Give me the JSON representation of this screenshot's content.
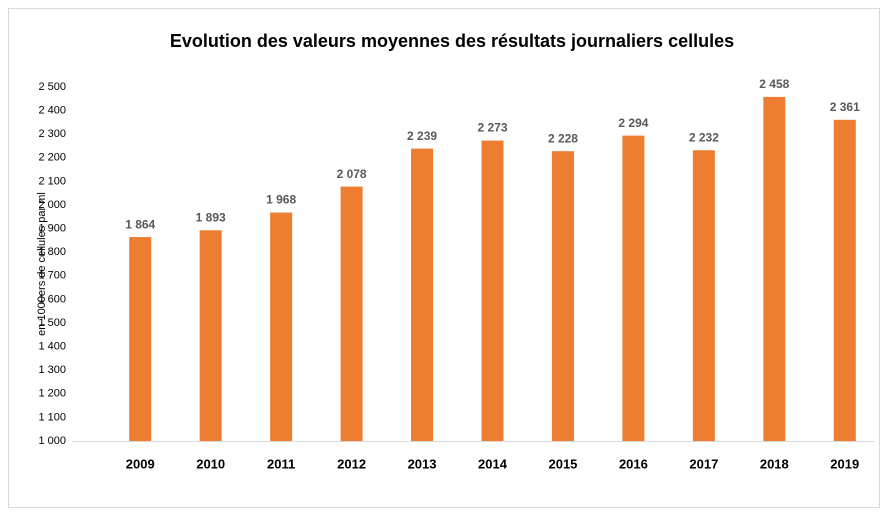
{
  "chart_data": {
    "type": "bar",
    "title": "Evolution des valeurs moyennes des résultats journaliers cellules",
    "y_label": "en 1000ers de cellules par ml",
    "categories": [
      "2009",
      "2010",
      "2011",
      "2012",
      "2013",
      "2014",
      "2015",
      "2016",
      "2017",
      "2018",
      "2019"
    ],
    "values": [
      1864,
      1893,
      1968,
      2078,
      2239,
      2273,
      2228,
      2294,
      2232,
      2458,
      2361
    ],
    "value_labels": [
      "1 864",
      "1 893",
      "1 968",
      "2 078",
      "2 239",
      "2 273",
      "2 228",
      "2 294",
      "2 232",
      "2 458",
      "2 361"
    ],
    "color": "#ed7d31",
    "ylim": [
      1000,
      2500
    ],
    "yticks": [
      {
        "value": 1000,
        "label": "1 000"
      },
      {
        "value": 1100,
        "label": "1 100"
      },
      {
        "value": 1200,
        "label": "1 200"
      },
      {
        "value": 1300,
        "label": "1 300"
      },
      {
        "value": 1400,
        "label": "1 400"
      },
      {
        "value": 1500,
        "label": "1 500"
      },
      {
        "value": 1600,
        "label": "1 600"
      },
      {
        "value": 1700,
        "label": "1 700"
      },
      {
        "value": 1800,
        "label": "1 800"
      },
      {
        "value": 1900,
        "label": "1 900"
      },
      {
        "value": 2000,
        "label": "2 000"
      },
      {
        "value": 2100,
        "label": "2 100"
      },
      {
        "value": 2200,
        "label": "2 200"
      },
      {
        "value": 2300,
        "label": "2 300"
      },
      {
        "value": 2400,
        "label": "2 400"
      },
      {
        "value": 2500,
        "label": "2 500"
      }
    ],
    "grid": false
  }
}
